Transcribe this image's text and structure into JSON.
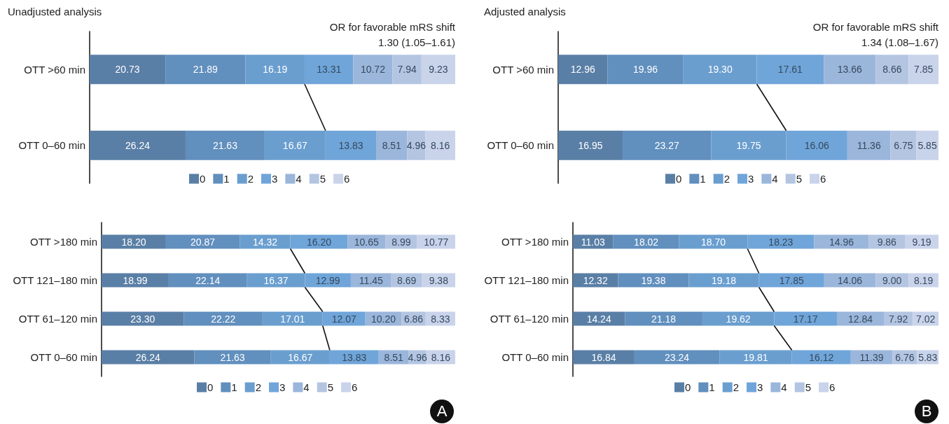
{
  "chart_data": [
    {
      "type": "bar",
      "stacked": true,
      "orientation": "horizontal",
      "title": "Unadjusted analysis",
      "annotations": [
        "OR for favorable mRS shift",
        "1.30 (1.05–1.61)"
      ],
      "legend": "bottom",
      "tick_labels": "y",
      "grid": false,
      "categories": [
        "OTT >60 min",
        "OTT 0–60 min"
      ],
      "series": [
        {
          "name": "0",
          "color": "#5a7fa6",
          "values": [
            20.73,
            26.24
          ],
          "value_labels": [
            "20.73",
            "26.24"
          ]
        },
        {
          "name": "1",
          "color": "#618fbe",
          "values": [
            21.89,
            21.63
          ],
          "value_labels": [
            "21.89",
            "21.63"
          ]
        },
        {
          "name": "2",
          "color": "#6a9ecf",
          "values": [
            16.19,
            16.67
          ],
          "value_labels": [
            "16.19",
            "16.67"
          ]
        },
        {
          "name": "3",
          "color": "#70a5d9",
          "values": [
            13.31,
            13.83
          ],
          "value_labels": [
            "13.31",
            "13.83"
          ]
        },
        {
          "name": "4",
          "color": "#9bb6db",
          "values": [
            10.72,
            8.51
          ],
          "value_labels": [
            "10.72",
            "8.51"
          ]
        },
        {
          "name": "5",
          "color": "#b4c5e2",
          "values": [
            7.94,
            4.96
          ],
          "value_labels": [
            "7.94",
            "4.96"
          ]
        },
        {
          "name": "6",
          "color": "#c9d3ea",
          "values": [
            9.23,
            8.16
          ],
          "value_labels": [
            "9.23",
            "8.16"
          ]
        }
      ]
    },
    {
      "type": "bar",
      "stacked": true,
      "orientation": "horizontal",
      "title": "Adjusted analysis",
      "annotations": [
        "OR for favorable mRS shift",
        "1.34 (1.08–1.67)"
      ],
      "legend": "bottom",
      "tick_labels": "y",
      "grid": false,
      "categories": [
        "OTT >60 min",
        "OTT 0–60 min"
      ],
      "series": [
        {
          "name": "0",
          "color": "#5a7fa6",
          "values": [
            12.96,
            16.95
          ],
          "value_labels": [
            "12.96",
            "16.95"
          ]
        },
        {
          "name": "1",
          "color": "#618fbe",
          "values": [
            19.96,
            23.27
          ],
          "value_labels": [
            "19.96",
            "23.27"
          ]
        },
        {
          "name": "2",
          "color": "#6a9ecf",
          "values": [
            19.3,
            19.75
          ],
          "value_labels": [
            "19.30",
            "19.75"
          ]
        },
        {
          "name": "3",
          "color": "#70a5d9",
          "values": [
            17.61,
            16.06
          ],
          "value_labels": [
            "17.61",
            "16.06"
          ]
        },
        {
          "name": "4",
          "color": "#9bb6db",
          "values": [
            13.66,
            11.36
          ],
          "value_labels": [
            "13.66",
            "11.36"
          ]
        },
        {
          "name": "5",
          "color": "#b4c5e2",
          "values": [
            8.66,
            6.75
          ],
          "value_labels": [
            "8.66",
            "6.75"
          ]
        },
        {
          "name": "6",
          "color": "#c9d3ea",
          "values": [
            7.85,
            5.85
          ],
          "value_labels": [
            "7.85",
            "5.85"
          ]
        }
      ]
    },
    {
      "type": "bar",
      "stacked": true,
      "orientation": "horizontal",
      "annotations": [
        "A"
      ],
      "legend": "bottom",
      "tick_labels": "y",
      "grid": false,
      "categories": [
        "OTT >180 min",
        "OTT 121–180 min",
        "OTT 61–120 min",
        "OTT 0–60 min"
      ],
      "series": [
        {
          "name": "0",
          "color": "#5a7fa6",
          "values": [
            18.2,
            18.99,
            23.3,
            26.24
          ],
          "value_labels": [
            "18.20",
            "18.99",
            "23.30",
            "26.24"
          ]
        },
        {
          "name": "1",
          "color": "#618fbe",
          "values": [
            20.87,
            22.14,
            22.22,
            21.63
          ],
          "value_labels": [
            "20.87",
            "22.14",
            "22.22",
            "21.63"
          ]
        },
        {
          "name": "2",
          "color": "#6a9ecf",
          "values": [
            14.32,
            16.37,
            17.01,
            16.67
          ],
          "value_labels": [
            "14.32",
            "16.37",
            "17.01",
            "16.67"
          ]
        },
        {
          "name": "3",
          "color": "#70a5d9",
          "values": [
            16.2,
            12.99,
            12.07,
            13.83
          ],
          "value_labels": [
            "16.20",
            "12.99",
            "12.07",
            "13.83"
          ]
        },
        {
          "name": "4",
          "color": "#9bb6db",
          "values": [
            10.65,
            11.45,
            10.2,
            8.51
          ],
          "value_labels": [
            "10.65",
            "11.45",
            "10.20",
            "8.51"
          ]
        },
        {
          "name": "5",
          "color": "#b4c5e2",
          "values": [
            8.99,
            8.69,
            6.86,
            4.96
          ],
          "value_labels": [
            "8.99",
            "8.69",
            "6.86",
            "4.96"
          ]
        },
        {
          "name": "6",
          "color": "#c9d3ea",
          "values": [
            10.77,
            9.38,
            8.33,
            8.16
          ],
          "value_labels": [
            "10.77",
            "9.38",
            "8.33",
            "8.16"
          ]
        }
      ]
    },
    {
      "type": "bar",
      "stacked": true,
      "orientation": "horizontal",
      "annotations": [
        "B"
      ],
      "legend": "bottom",
      "tick_labels": "y",
      "grid": false,
      "categories": [
        "OTT >180 min",
        "OTT 121–180 min",
        "OTT 61–120 min",
        "OTT 0–60 min"
      ],
      "series": [
        {
          "name": "0",
          "color": "#5a7fa6",
          "values": [
            11.03,
            12.32,
            14.24,
            16.84
          ],
          "value_labels": [
            "11.03",
            "12.32",
            "14.24",
            "16.84"
          ]
        },
        {
          "name": "1",
          "color": "#618fbe",
          "values": [
            18.02,
            19.38,
            21.18,
            23.24
          ],
          "value_labels": [
            "18.02",
            "19.38",
            "21.18",
            "23.24"
          ]
        },
        {
          "name": "2",
          "color": "#6a9ecf",
          "values": [
            18.7,
            19.18,
            19.62,
            19.81
          ],
          "value_labels": [
            "18.70",
            "19.18",
            "19.62",
            "19.81"
          ]
        },
        {
          "name": "3",
          "color": "#70a5d9",
          "values": [
            18.23,
            17.85,
            17.17,
            16.12
          ],
          "value_labels": [
            "18.23",
            "17.85",
            "17.17",
            "16.12"
          ]
        },
        {
          "name": "4",
          "color": "#9bb6db",
          "values": [
            14.96,
            14.06,
            12.84,
            11.39
          ],
          "value_labels": [
            "14.96",
            "14.06",
            "12.84",
            "11.39"
          ]
        },
        {
          "name": "5",
          "color": "#b4c5e2",
          "values": [
            9.86,
            9.0,
            7.92,
            6.76
          ],
          "value_labels": [
            "9.86",
            "9.00",
            "7.92",
            "6.76"
          ]
        },
        {
          "name": "6",
          "color": "#c9d3ea",
          "values": [
            9.19,
            8.19,
            7.02,
            5.83
          ],
          "value_labels": [
            "9.19",
            "8.19",
            "7.02",
            "5.83"
          ]
        }
      ]
    }
  ]
}
